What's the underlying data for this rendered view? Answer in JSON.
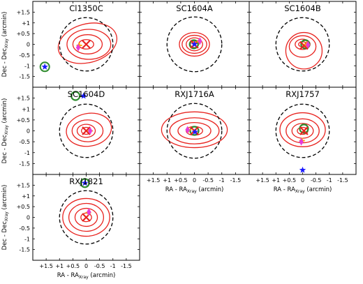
{
  "chart_data": {
    "type": "scatter",
    "description_free": true,
    "axes_common": {
      "xlim": [
        2.0,
        -2.0
      ],
      "ylim": [
        -2.0,
        2.0
      ],
      "x_ticks": [
        "+1.5",
        "+1",
        "+0.5",
        "0",
        "-0.5",
        "-1",
        "-1.5"
      ],
      "x_tick_values": [
        1.5,
        1,
        0.5,
        0,
        -0.5,
        -1,
        -1.5
      ],
      "y_ticks": [
        "+1.5",
        "+1",
        "+0.5",
        "0",
        "-0.5",
        "-1",
        "-1.5"
      ],
      "y_tick_values": [
        1.5,
        1,
        0.5,
        0,
        -0.5,
        -1,
        -1.5
      ],
      "xlabel_main": "RA - RA",
      "xlabel_sub": "Xray",
      "xlabel_unit": " (arcmin)",
      "ylabel_main": "Dec - Dec",
      "ylabel_sub": "Xray",
      "ylabel_unit": " (arcmin)",
      "dashed_circle_radius": 1.0
    },
    "panels": [
      {
        "title": "Cl1350C",
        "x_marker": [
          0.0,
          0.0
        ],
        "diamond": [
          0.3,
          -0.15
        ],
        "plus": [
          0.26,
          -0.05
        ],
        "star": [
          1.55,
          -1.05
        ],
        "star_ring": [
          1.55,
          -1.05
        ],
        "contours": [
          {
            "cx": 0.0,
            "cy": 0.0,
            "rx": 0.28,
            "ry": 0.22,
            "rot": 0
          },
          {
            "cx": -0.05,
            "cy": 0.0,
            "rx": 0.55,
            "ry": 0.45,
            "rot": 0
          },
          {
            "cx": -0.1,
            "cy": 0.0,
            "rx": 0.82,
            "ry": 0.7,
            "rot": 0
          },
          {
            "cx": -0.05,
            "cy": 0.05,
            "rx": 1.12,
            "ry": 0.9,
            "rot": -15
          }
        ]
      },
      {
        "title": "SC1604A",
        "x_marker": [
          0.0,
          0.0
        ],
        "diamond": [
          -0.2,
          0.15
        ],
        "plus": [
          -0.18,
          0.12
        ],
        "star": [
          0.0,
          0.0
        ],
        "ring": [
          0.02,
          0.0
        ],
        "contours": [
          {
            "cx": 0.0,
            "cy": 0.0,
            "rx": 0.15,
            "ry": 0.15,
            "rot": 0
          },
          {
            "cx": 0.0,
            "cy": 0.0,
            "rx": 0.3,
            "ry": 0.3,
            "rot": 0
          },
          {
            "cx": 0.0,
            "cy": 0.0,
            "rx": 0.45,
            "ry": 0.42,
            "rot": 0
          },
          {
            "cx": 0.0,
            "cy": 0.0,
            "rx": 0.55,
            "ry": 0.55,
            "rot": 0
          }
        ]
      },
      {
        "title": "SC1604B",
        "x_marker": [
          -0.05,
          -0.05
        ],
        "diamond": [
          -0.2,
          -0.02
        ],
        "plus": [
          -0.15,
          0.0
        ],
        "ring": [
          -0.1,
          0.0
        ],
        "contours": [
          {
            "cx": 0.0,
            "cy": 0.0,
            "rx": 0.15,
            "ry": 0.12,
            "rot": 0
          },
          {
            "cx": 0.0,
            "cy": 0.0,
            "rx": 0.28,
            "ry": 0.24,
            "rot": 0
          },
          {
            "cx": 0.0,
            "cy": -0.1,
            "rx": 0.5,
            "ry": 0.5,
            "rot": 0
          },
          {
            "cx": -0.05,
            "cy": -0.3,
            "rx": 0.68,
            "ry": 0.85,
            "rot": 0
          }
        ]
      },
      {
        "title": "SC1604D",
        "x_marker": [
          0.0,
          0.0
        ],
        "diamond": [
          -0.15,
          0.0
        ],
        "plus": [
          -0.15,
          0.0
        ],
        "star": [
          0.1,
          1.6
        ],
        "ring": [
          0.4,
          1.6
        ],
        "contours": [
          {
            "cx": 0.0,
            "cy": 0.0,
            "rx": 0.18,
            "ry": 0.16,
            "rot": 0
          },
          {
            "cx": 0.0,
            "cy": 0.0,
            "rx": 0.34,
            "ry": 0.3,
            "rot": 0
          },
          {
            "cx": -0.05,
            "cy": 0.0,
            "rx": 0.58,
            "ry": 0.5,
            "rot": 0
          },
          {
            "cx": -0.1,
            "cy": 0.05,
            "rx": 0.85,
            "ry": 0.75,
            "rot": -10
          }
        ]
      },
      {
        "title": "RXJ1716A",
        "x_marker": [
          0.0,
          0.0
        ],
        "diamond": [
          0.25,
          0.05
        ],
        "plus": [
          0.22,
          0.05
        ],
        "star": [
          -0.02,
          -0.05
        ],
        "ring": [
          0.0,
          0.0
        ],
        "contours": [
          {
            "cx": 0.0,
            "cy": 0.0,
            "rx": 0.3,
            "ry": 0.2,
            "rot": 0
          },
          {
            "cx": 0.0,
            "cy": 0.0,
            "rx": 0.6,
            "ry": 0.38,
            "rot": 0
          },
          {
            "cx": 0.0,
            "cy": 0.0,
            "rx": 0.9,
            "ry": 0.6,
            "rot": 0
          },
          {
            "cx": 0.0,
            "cy": 0.05,
            "rx": 1.2,
            "ry": 0.82,
            "rot": 0
          }
        ]
      },
      {
        "title": "RXJ1757",
        "x_marker": [
          -0.05,
          0.0
        ],
        "diamond": [
          0.05,
          -0.5
        ],
        "plus": [
          0.02,
          -0.45
        ],
        "star": [
          0.0,
          -1.8
        ],
        "ring": [
          -0.05,
          0.1
        ],
        "contours": [
          {
            "cx": 0.0,
            "cy": 0.0,
            "rx": 0.2,
            "ry": 0.16,
            "rot": 0
          },
          {
            "cx": 0.0,
            "cy": 0.0,
            "rx": 0.4,
            "ry": 0.34,
            "rot": 0
          },
          {
            "cx": 0.0,
            "cy": 0.0,
            "rx": 0.62,
            "ry": 0.55,
            "rot": 0
          },
          {
            "cx": 0.0,
            "cy": 0.05,
            "rx": 0.85,
            "ry": 0.78,
            "rot": 0
          }
        ]
      },
      {
        "title": "RXJ1821",
        "x_marker": [
          0.0,
          0.0
        ],
        "diamond": [
          -0.1,
          0.25
        ],
        "plus": [
          -0.08,
          0.22
        ],
        "star": [
          0.05,
          1.6
        ],
        "ring": [
          0.05,
          1.6
        ],
        "contours": [
          {
            "cx": 0.0,
            "cy": 0.0,
            "rx": 0.2,
            "ry": 0.2,
            "rot": 0
          },
          {
            "cx": 0.0,
            "cy": 0.0,
            "rx": 0.42,
            "ry": 0.42,
            "rot": 0
          },
          {
            "cx": 0.0,
            "cy": 0.0,
            "rx": 0.65,
            "ry": 0.65,
            "rot": 0
          },
          {
            "cx": 0.0,
            "cy": 0.0,
            "rx": 0.88,
            "ry": 0.88,
            "rot": 0
          }
        ]
      }
    ],
    "colors": {
      "contour": "#e8231f",
      "dashed_circle": "#000000",
      "x_marker": "#e8231f",
      "diamond": "#e63bdc",
      "plus": "#ffa500",
      "star": "#1a1aff",
      "ring": "#2e8b2e"
    }
  }
}
